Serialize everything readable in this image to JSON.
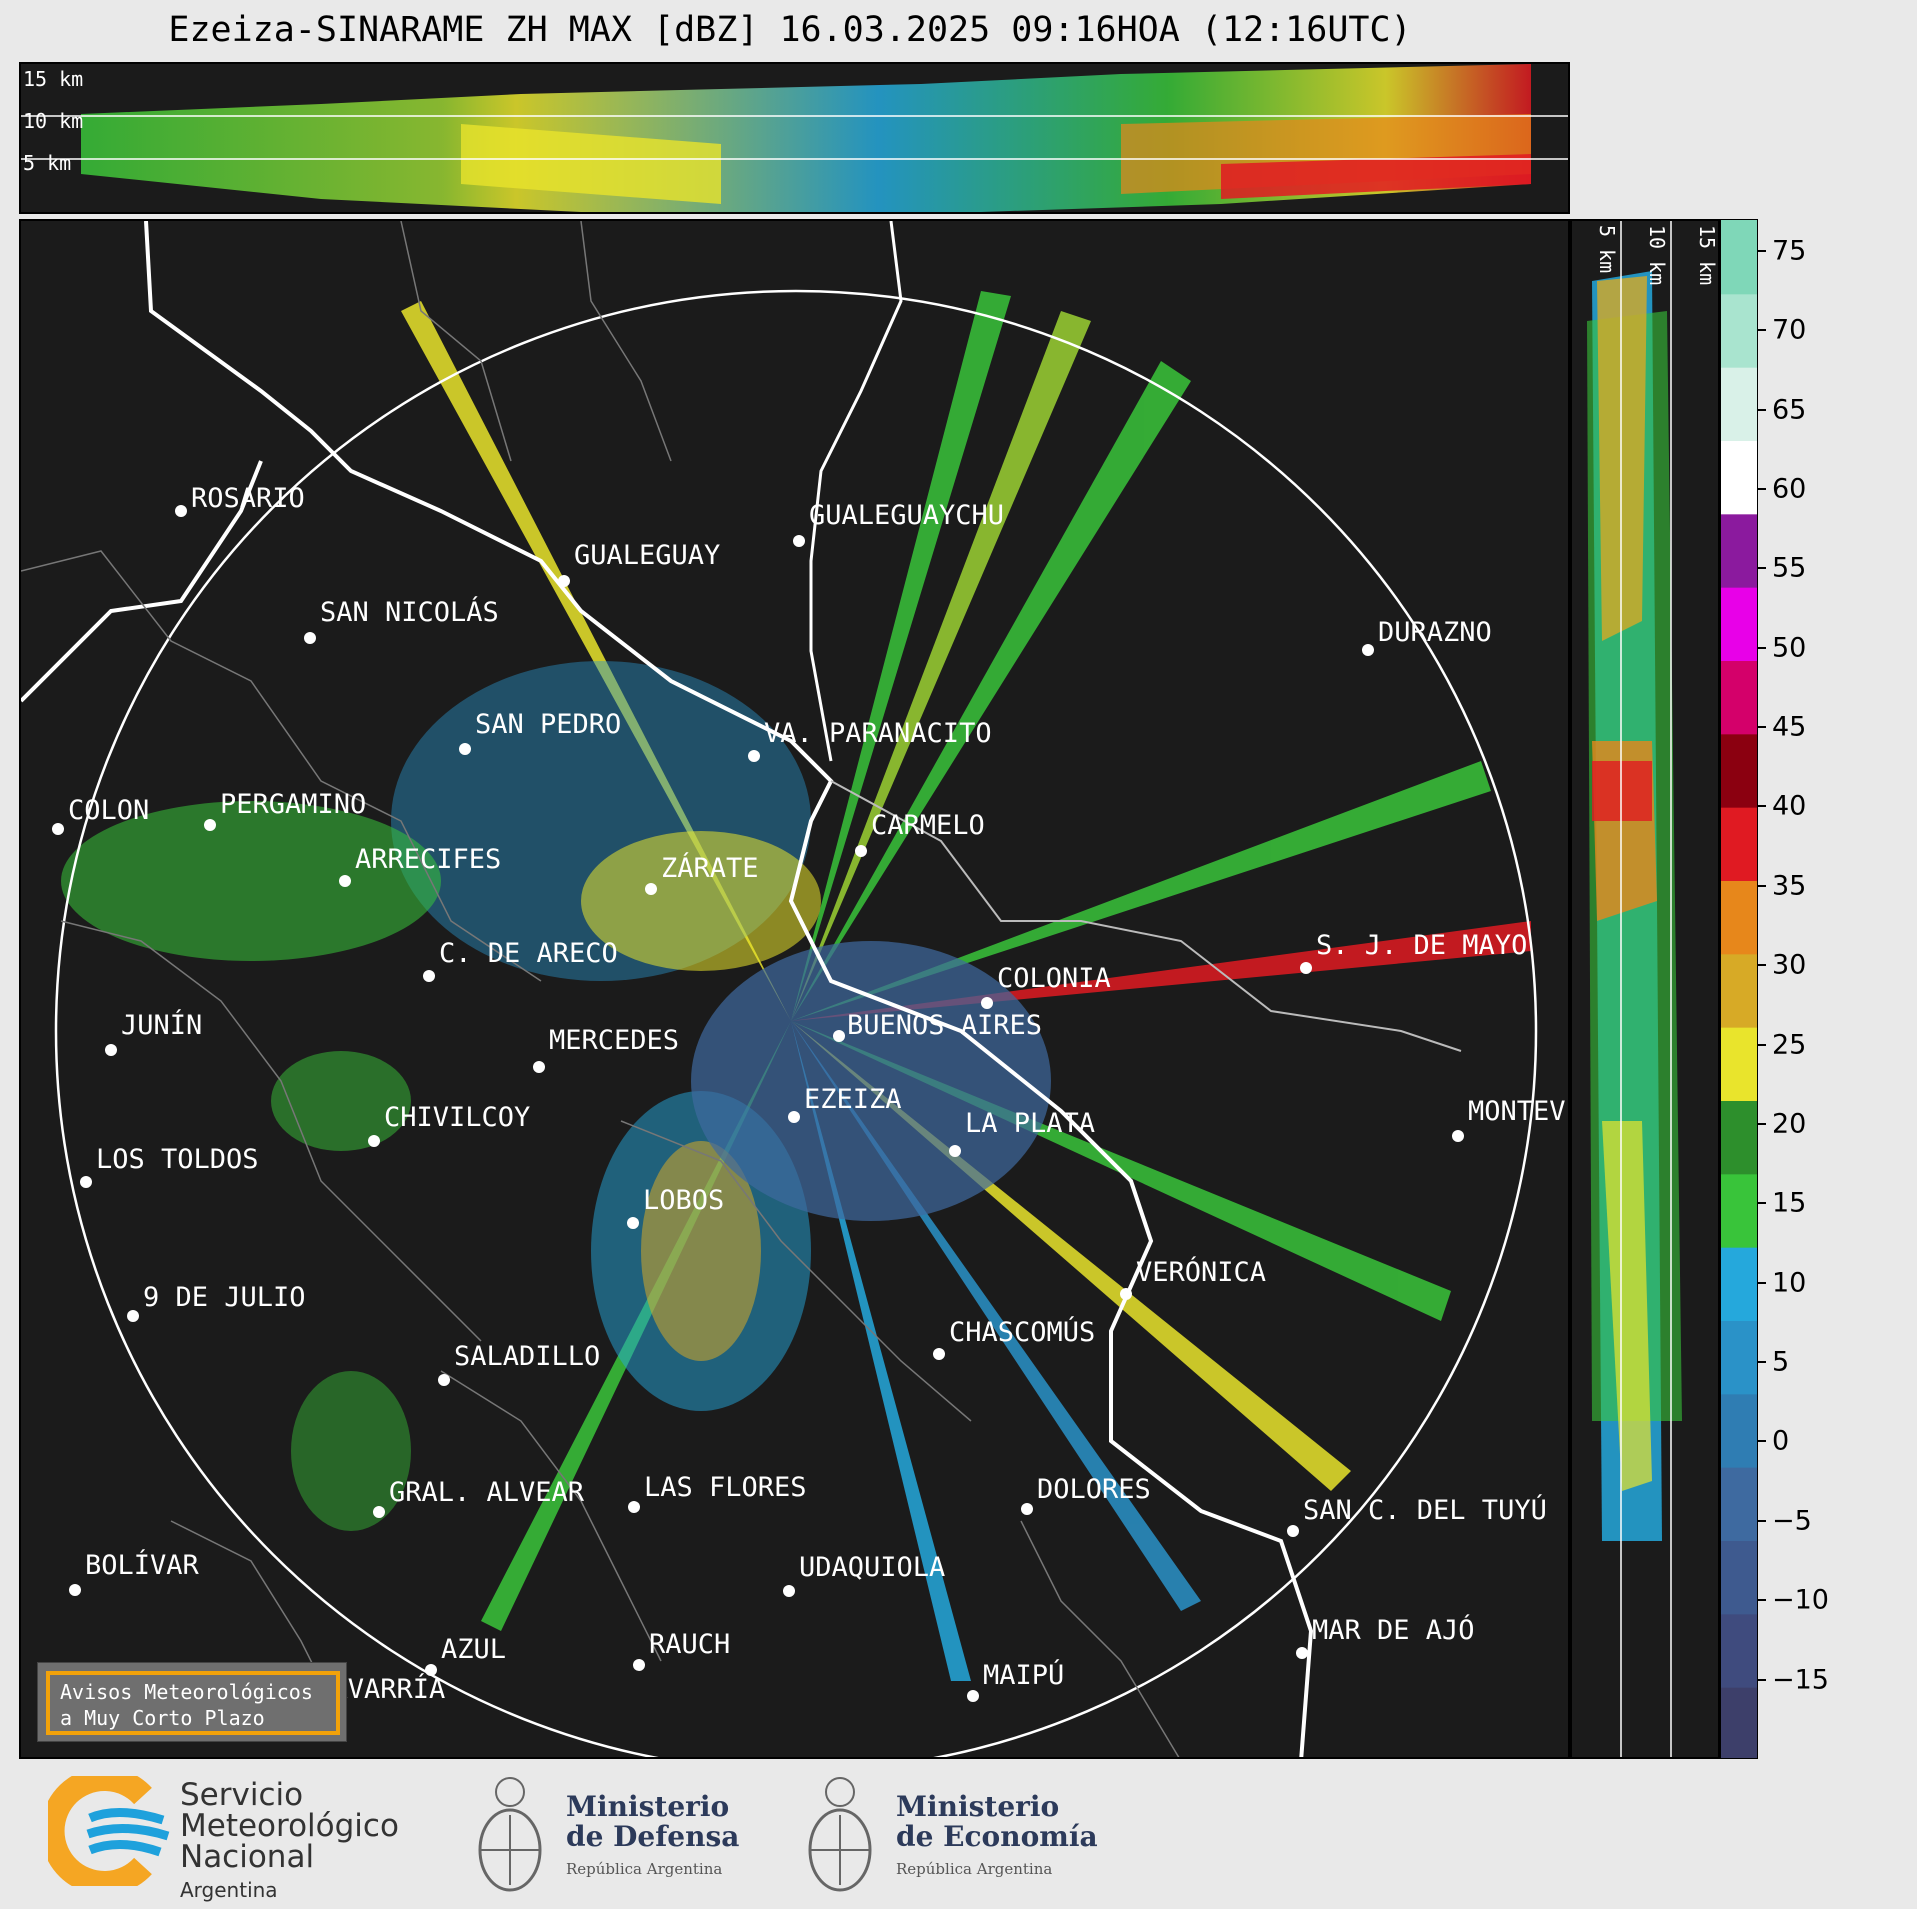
{
  "title": "Ezeiza-SINARAME ZH MAX [dBZ] 16.03.2025 09:16HOA (12:16UTC)",
  "top_panel": {
    "height_labels": [
      "15 km",
      "10 km",
      "5 km"
    ]
  },
  "side_panel": {
    "height_labels": [
      "5 km",
      "10 km",
      "15 km"
    ]
  },
  "colorbar": {
    "unit": "dBZ",
    "tick_labels": [
      "75",
      "70",
      "65",
      "60",
      "55",
      "50",
      "45",
      "40",
      "35",
      "30",
      "25",
      "20",
      "15",
      "10",
      "5",
      "0",
      "−5",
      "−10",
      "−15"
    ],
    "range": [
      -20,
      77
    ],
    "colors": [
      "#3d3f6a",
      "#3f4b7e",
      "#3e5a8f",
      "#3e6aa0",
      "#2f7db3",
      "#2a92c8",
      "#25a8dc",
      "#39c43a",
      "#2d8f2c",
      "#e9e42c",
      "#d7aa26",
      "#e7871b",
      "#e01a22",
      "#8b0010",
      "#d4006a",
      "#e800e8",
      "#8b1a9e",
      "#ffffff",
      "#d9f1e8",
      "#a9e4cf",
      "#7fd7b8"
    ]
  },
  "map": {
    "cities": [
      {
        "name": "ROSARIO"
      },
      {
        "name": "GUALEGUAYCHU"
      },
      {
        "name": "GUALEGUAY"
      },
      {
        "name": "SAN NICOLÁS"
      },
      {
        "name": "DURAZNO"
      },
      {
        "name": "SAN PEDRO"
      },
      {
        "name": "VA. PARANACITO"
      },
      {
        "name": "COLON"
      },
      {
        "name": "PERGAMINO"
      },
      {
        "name": "CARMELO"
      },
      {
        "name": "ARRECIFES"
      },
      {
        "name": "ZÁRATE"
      },
      {
        "name": "S. J. DE MAYO"
      },
      {
        "name": "C. DE ARECO"
      },
      {
        "name": "COLONIA"
      },
      {
        "name": "JUNÍN"
      },
      {
        "name": "BUENOS AIRES"
      },
      {
        "name": "MERCEDES"
      },
      {
        "name": "EZEIZA"
      },
      {
        "name": "MONTEVIDEO"
      },
      {
        "name": "CHIVILCOY"
      },
      {
        "name": "LA PLATA"
      },
      {
        "name": "LOS TOLDOS"
      },
      {
        "name": "LOBOS"
      },
      {
        "name": "VERÓNICA"
      },
      {
        "name": "9 DE JULIO"
      },
      {
        "name": "CHASCOMÚS"
      },
      {
        "name": "SALADILLO"
      },
      {
        "name": "GRAL. ALVEAR"
      },
      {
        "name": "LAS FLORES"
      },
      {
        "name": "BOLÍVAR"
      },
      {
        "name": "DOLORES"
      },
      {
        "name": "SAN C. DEL TUYÚ"
      },
      {
        "name": "UDAQUIOLA"
      },
      {
        "name": "MAR DE AJÓ"
      },
      {
        "name": "AZUL"
      },
      {
        "name": "RAUCH"
      },
      {
        "name": "OLAVARRÍA"
      },
      {
        "name": "MAIPÚ"
      }
    ]
  },
  "avisos": {
    "line1": "Avisos Meteorológicos",
    "line2": "a Muy Corto Plazo"
  },
  "footer": {
    "smn": {
      "l1": "Servicio",
      "l2": "Meteorológico",
      "l3": "Nacional",
      "country": "Argentina"
    },
    "defensa": {
      "l1": "Ministerio",
      "l2": "de Defensa",
      "rep": "República Argentina"
    },
    "economia": {
      "l1": "Ministerio",
      "l2": "de Economía",
      "rep": "República Argentina"
    }
  }
}
